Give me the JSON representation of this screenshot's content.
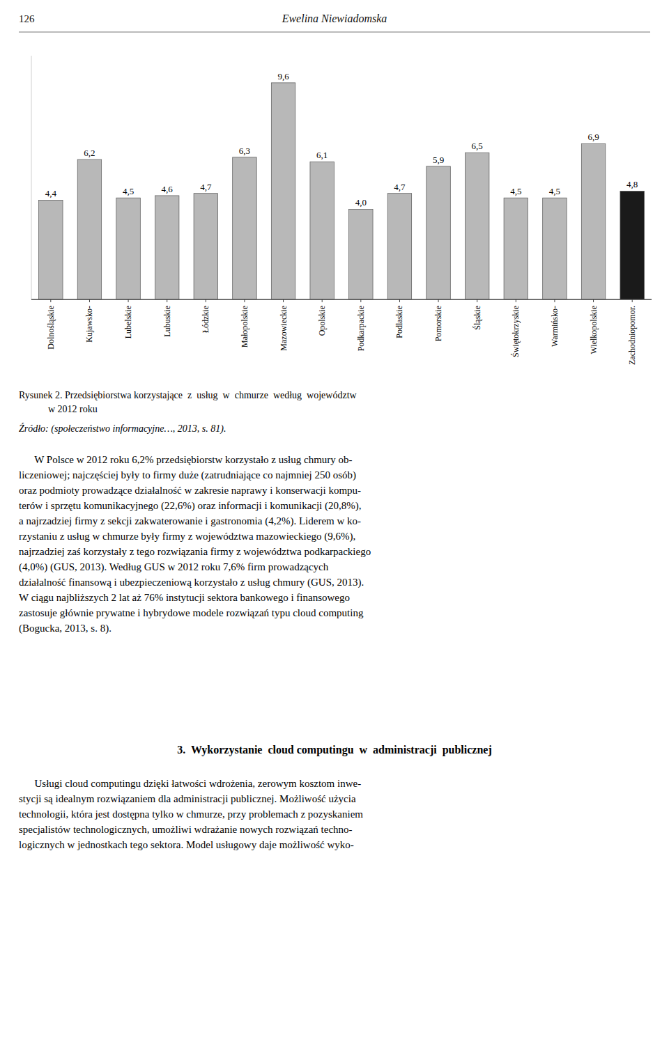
{
  "chart_data": {
    "type": "bar",
    "title": "Rysunek 2. Przedsiębiorstwa korzystające  z  usług  w  chmurze  według  województw",
    "subtitle": "            w 2012 roku",
    "categories": [
      "Dolnośląskie",
      "Kujawsko-",
      "Lubelskie",
      "Lubuskie",
      "Łódzkie",
      "Małopolskie",
      "Mazowieckie",
      "Opolskie",
      "Podkarpackie",
      "Podlaskie",
      "Pomorskie",
      "Śląskie",
      "Świętokrzyskie",
      "Warmińsko-",
      "Wielkopolskie",
      "Zachodniopomor."
    ],
    "values": [
      4.4,
      6.2,
      4.5,
      4.6,
      4.7,
      6.3,
      9.6,
      6.1,
      4.0,
      4.7,
      5.9,
      6.5,
      4.5,
      4.5,
      6.9,
      4.8
    ],
    "value_labels": [
      "4,4",
      "6,2",
      "4,5",
      "4,6",
      "4,7",
      "6,3",
      "9,6",
      "6,1",
      "4,0",
      "4,7",
      "5,9",
      "6,5",
      "4,5",
      "4,5",
      "6,9",
      "4,8"
    ],
    "colors": [
      "#b8b8b8",
      "#b8b8b8",
      "#b8b8b8",
      "#b8b8b8",
      "#b8b8b8",
      "#b8b8b8",
      "#b8b8b8",
      "#b8b8b8",
      "#b8b8b8",
      "#b8b8b8",
      "#b8b8b8",
      "#b8b8b8",
      "#b8b8b8",
      "#b8b8b8",
      "#b8b8b8",
      "#1a1a1a"
    ],
    "ylim": [
      0,
      10.8
    ],
    "data_labels": true,
    "tick_labels": "x",
    "grid": false,
    "annotations": [
      "126",
      "Ewelina Niewiadomska",
      "Źródło: (społeczeństwo informacyjne…, 2013, s. 81).",
      "      W Polsce w 2012 roku 6,2% przedsiębiorstw korzystało z usług chmury ob-",
      "liczeniowej; najczęściej były to firmy duże (zatrudniające co najmniej 250 osób)",
      "oraz podmioty prowadzące działalność w zakresie naprawy i konserwacji kompu-",
      "terów i sprzętu komunikacyjnego (22,6%) oraz informacji i komunikacji (20,8%),",
      "a najrzadziej firmy z sekcji zakwaterowanie i gastronomia (4,2%). Liderem w ko-",
      "rzystaniu z usług w chmurze były firmy z województwa mazowieckiego (9,6%),",
      "najrzadziej zaś korzystały z tego rozwiązania firmy z województwa podkarpackiego",
      "(4,0%) (GUS, 2013). Według GUS w 2012 roku 7,6% firm prowadzących",
      "działalność finansową i ubezpieczeniową korzystało z usług chmury (GUS, 2013).",
      "W ciągu najbliższych 2 lat aż 76% instytucji sektora bankowego i finansowego",
      "zastosuje głównie prywatne i hybrydowe modele rozwiązań typu ⁠cloud computing",
      "(Bogucka, 2013, s. 8).",
      "3.  Wykorzystanie  ⁠cloud computingu⁠  w  administracji  publicznej",
      "      Usługi ⁠cloud computingu⁠ dzięki łatwości wdrożenia, zerowym kosztom inwe-",
      "stycji są idealnym rozwiązaniem dla administracji publicznej. Możliwość użycia",
      "technologii, która jest dostępna tylko w chmurze, przy problemach z pozyskaniem",
      "specjalistów technologicznych, umożliwi wdrażanie nowych rozwiązań techno-",
      "logicznych w jednostkach tego sektora. Model usługowy daje możliwość wyko-"
    ]
  }
}
